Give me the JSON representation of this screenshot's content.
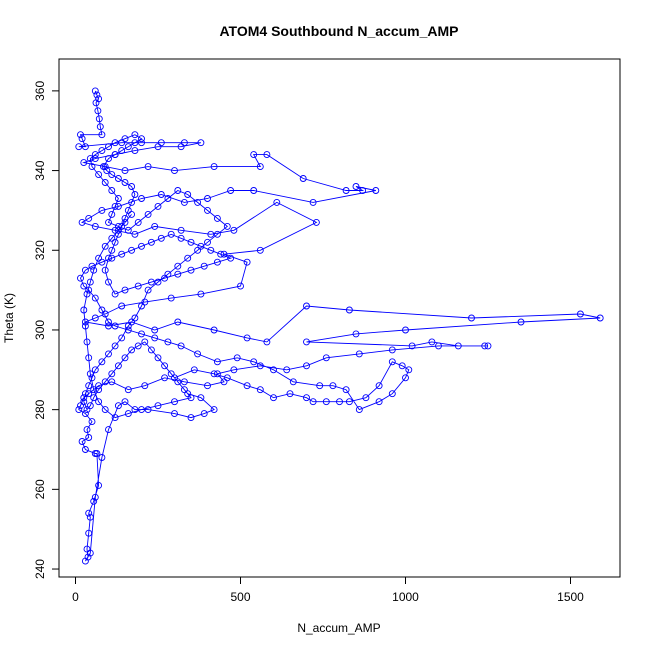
{
  "chart_data": {
    "type": "line",
    "title": "ATOM4 Southbound N_accum_AMP",
    "xlabel": "N_accum_AMP",
    "ylabel": "Theta (K)",
    "xlim": [
      -50,
      1650
    ],
    "ylim": [
      238,
      368
    ],
    "x_ticks": [
      0,
      500,
      1000,
      1500
    ],
    "y_ticks": [
      240,
      260,
      280,
      300,
      320,
      340,
      360
    ],
    "grid": false,
    "legend": "none",
    "marker": "open-circle",
    "colors": {
      "series": "#0000ff",
      "axis": "#000000",
      "background": "#ffffff"
    },
    "series": [
      {
        "points": [
          [
            60,
            360
          ],
          [
            65,
            359
          ],
          [
            70,
            358
          ],
          [
            62,
            357
          ],
          [
            68,
            355
          ],
          [
            72,
            353
          ],
          [
            75,
            351
          ],
          [
            80,
            349
          ],
          [
            15,
            349
          ],
          [
            20,
            348
          ],
          [
            30,
            346
          ],
          [
            10,
            346
          ],
          [
            140,
            347
          ],
          [
            200,
            347
          ],
          [
            260,
            347
          ],
          [
            330,
            347
          ],
          [
            380,
            347
          ],
          [
            320,
            346
          ],
          [
            250,
            346
          ],
          [
            180,
            345
          ],
          [
            120,
            344
          ],
          [
            60,
            343
          ],
          [
            25,
            342
          ],
          [
            90,
            341
          ],
          [
            150,
            340
          ],
          [
            220,
            341
          ],
          [
            300,
            340
          ],
          [
            420,
            341
          ],
          [
            560,
            341
          ],
          [
            540,
            344
          ],
          [
            580,
            344
          ],
          [
            690,
            338
          ],
          [
            820,
            335
          ],
          [
            870,
            335
          ],
          [
            850,
            336
          ],
          [
            910,
            335
          ],
          [
            720,
            332
          ],
          [
            540,
            335
          ],
          [
            470,
            335
          ],
          [
            400,
            333
          ],
          [
            330,
            332
          ],
          [
            260,
            334
          ],
          [
            200,
            333
          ],
          [
            130,
            331
          ],
          [
            80,
            330
          ],
          [
            40,
            328
          ],
          [
            20,
            327
          ],
          [
            60,
            326
          ],
          [
            120,
            325
          ],
          [
            180,
            324
          ],
          [
            240,
            326
          ],
          [
            320,
            325
          ],
          [
            410,
            324
          ],
          [
            480,
            325
          ],
          [
            610,
            332
          ],
          [
            730,
            327
          ],
          [
            560,
            320
          ],
          [
            450,
            319
          ],
          [
            520,
            317
          ],
          [
            500,
            311
          ],
          [
            380,
            309
          ],
          [
            290,
            308
          ],
          [
            210,
            307
          ],
          [
            140,
            306
          ],
          [
            90,
            304
          ],
          [
            60,
            303
          ],
          [
            30,
            302
          ],
          [
            100,
            301
          ],
          [
            170,
            302
          ],
          [
            240,
            300
          ],
          [
            310,
            302
          ],
          [
            420,
            300
          ],
          [
            520,
            298
          ],
          [
            580,
            297
          ],
          [
            700,
            306
          ],
          [
            830,
            305
          ],
          [
            1200,
            303
          ],
          [
            1530,
            304
          ],
          [
            1590,
            303
          ],
          [
            1350,
            302
          ],
          [
            1000,
            300
          ],
          [
            850,
            299
          ],
          [
            700,
            297
          ],
          [
            1020,
            296
          ],
          [
            1080,
            297
          ],
          [
            1160,
            296
          ],
          [
            1240,
            296
          ],
          [
            1250,
            296
          ],
          [
            1100,
            296
          ],
          [
            960,
            295
          ],
          [
            860,
            294
          ],
          [
            760,
            293
          ],
          [
            700,
            291
          ],
          [
            640,
            290
          ],
          [
            560,
            291
          ],
          [
            480,
            290
          ],
          [
            430,
            289
          ],
          [
            450,
            287
          ],
          [
            400,
            286
          ],
          [
            330,
            287
          ],
          [
            270,
            288
          ],
          [
            210,
            286
          ],
          [
            160,
            285
          ],
          [
            110,
            287
          ],
          [
            70,
            286
          ],
          [
            40,
            284
          ],
          [
            25,
            283
          ],
          [
            15,
            281
          ],
          [
            10,
            280
          ],
          [
            30,
            279
          ],
          [
            50,
            277
          ],
          [
            35,
            275
          ],
          [
            40,
            273
          ],
          [
            20,
            272
          ],
          [
            30,
            270
          ],
          [
            60,
            269
          ],
          [
            65,
            269
          ],
          [
            70,
            261
          ],
          [
            55,
            257
          ],
          [
            40,
            254
          ],
          [
            45,
            253
          ],
          [
            40,
            249
          ],
          [
            35,
            245
          ],
          [
            38,
            243
          ],
          [
            30,
            242
          ],
          [
            45,
            244
          ],
          [
            60,
            258
          ],
          [
            80,
            268
          ],
          [
            100,
            275
          ],
          [
            130,
            281
          ],
          [
            150,
            282
          ],
          [
            180,
            280
          ],
          [
            220,
            280
          ],
          [
            300,
            279
          ],
          [
            350,
            278
          ],
          [
            390,
            279
          ],
          [
            420,
            280
          ],
          [
            380,
            283
          ],
          [
            340,
            284
          ],
          [
            300,
            288
          ],
          [
            360,
            290
          ],
          [
            420,
            289
          ],
          [
            460,
            288
          ],
          [
            520,
            286
          ],
          [
            560,
            285
          ],
          [
            600,
            283
          ],
          [
            650,
            284
          ],
          [
            700,
            283
          ],
          [
            720,
            282
          ],
          [
            760,
            282
          ],
          [
            800,
            282
          ],
          [
            830,
            282
          ],
          [
            880,
            283
          ],
          [
            920,
            286
          ],
          [
            960,
            292
          ],
          [
            990,
            291
          ],
          [
            1010,
            290
          ],
          [
            1000,
            288
          ],
          [
            960,
            284
          ],
          [
            920,
            282
          ],
          [
            860,
            280
          ],
          [
            820,
            285
          ],
          [
            780,
            286
          ],
          [
            740,
            286
          ],
          [
            660,
            287
          ],
          [
            600,
            290
          ],
          [
            540,
            292
          ],
          [
            490,
            293
          ],
          [
            430,
            292
          ],
          [
            370,
            294
          ],
          [
            320,
            296
          ],
          [
            280,
            297
          ],
          [
            240,
            298
          ],
          [
            200,
            299
          ],
          [
            160,
            300
          ],
          [
            120,
            301
          ],
          [
            100,
            302
          ],
          [
            80,
            305
          ],
          [
            60,
            308
          ],
          [
            40,
            310
          ],
          [
            25,
            311
          ],
          [
            15,
            313
          ],
          [
            30,
            315
          ],
          [
            50,
            316
          ],
          [
            80,
            317
          ],
          [
            110,
            318
          ],
          [
            140,
            319
          ],
          [
            170,
            320
          ],
          [
            200,
            321
          ],
          [
            230,
            322
          ],
          [
            260,
            323
          ],
          [
            290,
            324
          ],
          [
            320,
            323
          ],
          [
            350,
            322
          ],
          [
            380,
            321
          ],
          [
            410,
            320
          ],
          [
            440,
            319
          ],
          [
            470,
            318
          ],
          [
            430,
            317
          ],
          [
            390,
            316
          ],
          [
            350,
            315
          ],
          [
            310,
            314
          ],
          [
            270,
            313
          ],
          [
            230,
            312
          ],
          [
            190,
            311
          ],
          [
            150,
            310
          ],
          [
            120,
            309
          ],
          [
            100,
            312
          ],
          [
            90,
            315
          ],
          [
            100,
            318
          ],
          [
            110,
            320
          ],
          [
            120,
            322
          ],
          [
            130,
            324
          ],
          [
            140,
            326
          ],
          [
            150,
            328
          ],
          [
            160,
            330
          ],
          [
            170,
            332
          ],
          [
            180,
            334
          ],
          [
            170,
            336
          ],
          [
            150,
            337
          ],
          [
            130,
            338
          ],
          [
            110,
            339
          ],
          [
            95,
            340
          ],
          [
            85,
            341
          ],
          [
            100,
            343
          ],
          [
            120,
            344
          ],
          [
            140,
            345
          ],
          [
            160,
            346
          ],
          [
            180,
            347
          ],
          [
            200,
            348
          ],
          [
            180,
            349
          ],
          [
            150,
            348
          ],
          [
            120,
            347
          ],
          [
            100,
            346
          ],
          [
            80,
            345
          ],
          [
            60,
            344
          ],
          [
            45,
            343
          ],
          [
            50,
            341
          ],
          [
            70,
            339
          ],
          [
            90,
            337
          ],
          [
            110,
            335
          ],
          [
            130,
            333
          ],
          [
            120,
            331
          ],
          [
            110,
            329
          ],
          [
            100,
            327
          ],
          [
            130,
            326
          ],
          [
            160,
            325
          ],
          [
            190,
            327
          ],
          [
            220,
            329
          ],
          [
            250,
            331
          ],
          [
            280,
            333
          ],
          [
            310,
            335
          ],
          [
            340,
            334
          ],
          [
            370,
            332
          ],
          [
            400,
            330
          ],
          [
            430,
            328
          ],
          [
            460,
            326
          ],
          [
            430,
            324
          ],
          [
            400,
            322
          ],
          [
            370,
            320
          ],
          [
            340,
            318
          ],
          [
            310,
            316
          ],
          [
            280,
            314
          ],
          [
            250,
            312
          ],
          [
            220,
            310
          ],
          [
            200,
            306
          ],
          [
            180,
            303
          ],
          [
            160,
            301
          ],
          [
            140,
            298
          ],
          [
            120,
            296
          ],
          [
            100,
            294
          ],
          [
            80,
            292
          ],
          [
            60,
            290
          ],
          [
            50,
            288
          ],
          [
            40,
            286
          ],
          [
            30,
            284
          ],
          [
            25,
            282
          ],
          [
            35,
            280
          ],
          [
            45,
            281
          ],
          [
            55,
            283
          ],
          [
            70,
            285
          ],
          [
            90,
            287
          ],
          [
            110,
            289
          ],
          [
            130,
            291
          ],
          [
            150,
            293
          ],
          [
            170,
            295
          ],
          [
            190,
            296
          ],
          [
            210,
            297
          ],
          [
            230,
            295
          ],
          [
            250,
            293
          ],
          [
            270,
            291
          ],
          [
            290,
            289
          ],
          [
            310,
            287
          ],
          [
            330,
            285
          ],
          [
            350,
            283
          ],
          [
            300,
            282
          ],
          [
            250,
            281
          ],
          [
            200,
            280
          ],
          [
            160,
            279
          ],
          [
            120,
            278
          ],
          [
            90,
            280
          ],
          [
            70,
            282
          ],
          [
            55,
            285
          ],
          [
            45,
            289
          ],
          [
            40,
            293
          ],
          [
            35,
            297
          ],
          [
            30,
            301
          ],
          [
            25,
            305
          ],
          [
            35,
            309
          ],
          [
            45,
            312
          ],
          [
            55,
            315
          ],
          [
            70,
            318
          ],
          [
            90,
            321
          ],
          [
            110,
            323
          ],
          [
            130,
            325
          ],
          [
            150,
            327
          ],
          [
            170,
            329
          ]
        ]
      }
    ]
  }
}
